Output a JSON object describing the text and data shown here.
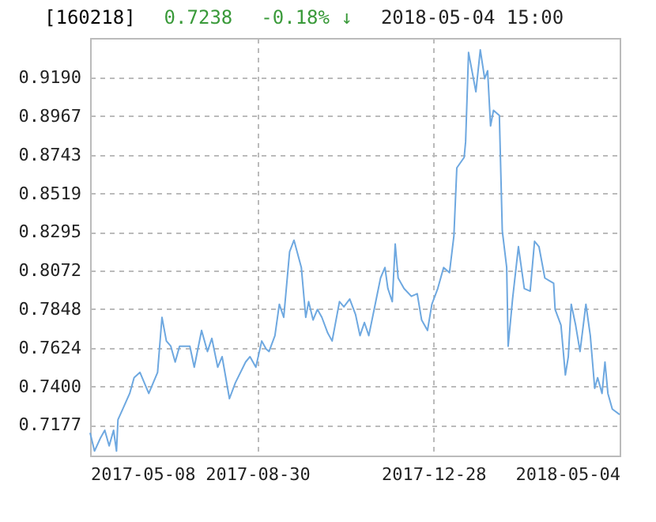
{
  "chart_data": {
    "type": "line",
    "title": "[160218]",
    "annotations": [
      "0.7238",
      "-0.18% ↓",
      "2018-05-04 15:00"
    ],
    "x": [
      "2017-05-08",
      "2017-05-11",
      "2017-05-15",
      "2017-05-18",
      "2017-05-21",
      "2017-05-24",
      "2017-05-26",
      "2017-05-27",
      "2017-05-31",
      "2017-06-04",
      "2017-06-07",
      "2017-06-11",
      "2017-06-14",
      "2017-06-17",
      "2017-06-20",
      "2017-06-23",
      "2017-06-26",
      "2017-06-29",
      "2017-07-02",
      "2017-07-05",
      "2017-07-08",
      "2017-07-12",
      "2017-07-15",
      "2017-07-18",
      "2017-07-23",
      "2017-07-27",
      "2017-07-30",
      "2017-08-03",
      "2017-08-06",
      "2017-08-11",
      "2017-08-15",
      "2017-08-22",
      "2017-08-25",
      "2017-08-29",
      "2017-09-02",
      "2017-09-05",
      "2017-09-07",
      "2017-09-11",
      "2017-09-14",
      "2017-09-17",
      "2017-09-21",
      "2017-09-24",
      "2017-09-29",
      "2017-10-02",
      "2017-10-04",
      "2017-10-07",
      "2017-10-10",
      "2017-10-13",
      "2017-10-17",
      "2017-10-20",
      "2017-10-25",
      "2017-10-28",
      "2017-11-01",
      "2017-11-05",
      "2017-11-08",
      "2017-11-11",
      "2017-11-14",
      "2017-11-18",
      "2017-11-22",
      "2017-11-25",
      "2017-11-27",
      "2017-11-30",
      "2017-12-02",
      "2017-12-04",
      "2017-12-08",
      "2017-12-13",
      "2017-12-17",
      "2017-12-20",
      "2017-12-24",
      "2017-12-27",
      "2017-12-31",
      "2018-01-04",
      "2018-01-08",
      "2018-01-11",
      "2018-01-13",
      "2018-01-18",
      "2018-01-19",
      "2018-01-21",
      "2018-01-26",
      "2018-01-29",
      "2018-02-01",
      "2018-02-03",
      "2018-02-05",
      "2018-02-07",
      "2018-02-11",
      "2018-02-13",
      "2018-02-16",
      "2018-02-17",
      "2018-02-20",
      "2018-02-24",
      "2018-02-28",
      "2018-03-04",
      "2018-03-07",
      "2018-03-10",
      "2018-03-14",
      "2018-03-17",
      "2018-03-20",
      "2018-03-21",
      "2018-03-25",
      "2018-03-28",
      "2018-03-30",
      "2018-04-01",
      "2018-04-04",
      "2018-04-07",
      "2018-04-11",
      "2018-04-14",
      "2018-04-17",
      "2018-04-19",
      "2018-04-22",
      "2018-04-24",
      "2018-04-26",
      "2018-04-29",
      "2018-05-04"
    ],
    "series": [
      {
        "color": "#6ea8e0",
        "values": [
          0.7132,
          0.7026,
          0.7101,
          0.7147,
          0.7056,
          0.7147,
          0.7026,
          0.7208,
          0.7284,
          0.736,
          0.7451,
          0.7482,
          0.7421,
          0.736,
          0.7421,
          0.7482,
          0.7801,
          0.7664,
          0.7634,
          0.7542,
          0.7634,
          0.7634,
          0.7634,
          0.7512,
          0.7725,
          0.7603,
          0.7679,
          0.7512,
          0.7573,
          0.733,
          0.7421,
          0.7542,
          0.7573,
          0.7512,
          0.7664,
          0.7618,
          0.7603,
          0.7695,
          0.7877,
          0.7801,
          0.8181,
          0.8248,
          0.809,
          0.7801,
          0.7892,
          0.7786,
          0.7847,
          0.7801,
          0.771,
          0.7664,
          0.7892,
          0.7862,
          0.7907,
          0.7816,
          0.7695,
          0.7771,
          0.7695,
          0.7862,
          0.8029,
          0.809,
          0.7968,
          0.7892,
          0.8226,
          0.8029,
          0.7968,
          0.7923,
          0.7938,
          0.7786,
          0.7725,
          0.7877,
          0.7968,
          0.809,
          0.806,
          0.8272,
          0.8667,
          0.8728,
          0.8819,
          0.9336,
          0.9108,
          0.9351,
          0.9184,
          0.923,
          0.891,
          0.9001,
          0.8971,
          0.8302,
          0.809,
          0.7634,
          0.7907,
          0.8211,
          0.7968,
          0.7953,
          0.8242,
          0.8211,
          0.8029,
          0.8014,
          0.7999,
          0.7847,
          0.7756,
          0.7467,
          0.7573,
          0.7877,
          0.7756,
          0.7603,
          0.7877,
          0.7695,
          0.739,
          0.7451,
          0.736,
          0.7542,
          0.736,
          0.7269,
          0.7238
        ]
      }
    ],
    "xlim": [
      "2017-05-08",
      "2018-05-04"
    ],
    "xticks": [
      "2017-05-08",
      "2017-08-30",
      "2017-12-28",
      "2018-05-04"
    ],
    "ylim": [
      0.7,
      0.942
    ],
    "yticks": [
      0.7177,
      {
        "value": 0.74,
        "label": "0.7400"
      },
      0.7624,
      0.7848,
      0.8072,
      0.8295,
      0.8519,
      0.8743,
      0.8967,
      {
        "value": 0.919,
        "label": "0.9190"
      }
    ],
    "grid": true
  }
}
